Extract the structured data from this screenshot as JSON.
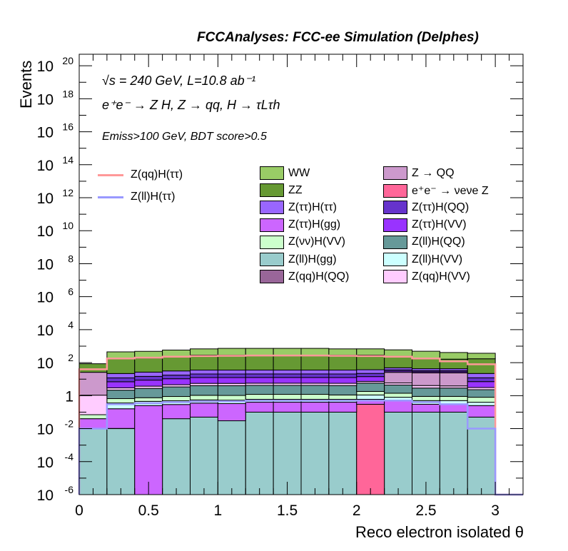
{
  "header": {
    "title": "FCCAnalyses: FCC-ee Simulation (Delphes)"
  },
  "annotations": {
    "energy": "√s = 240 GeV, L=10.8 ab⁻¹",
    "process": "e⁺e⁻ → Z H, Z → qq, H → τLτh",
    "cut": "Emiss>100 GeV, BDT score>0.5"
  },
  "chart_data": {
    "type": "bar",
    "stacked": true,
    "log_y": true,
    "xlabel": "Reco electron isolated θ",
    "ylabel": "Events",
    "xlim": [
      0,
      3.2
    ],
    "ylim": [
      1e-06,
      5e+20
    ],
    "bin_edges": [
      0,
      0.2,
      0.4,
      0.6,
      0.8,
      1.0,
      1.2,
      1.4,
      1.6,
      1.8,
      2.0,
      2.2,
      2.4,
      2.6,
      2.8,
      3.0
    ],
    "x_ticks": [
      "0",
      "0.5",
      "1",
      "1.5",
      "2",
      "2.5",
      "3"
    ],
    "y_ticks": [
      "10^-6",
      "10^-4",
      "10^-2",
      "1",
      "10^2",
      "10^4",
      "10^6",
      "10^8",
      "10^10",
      "10^12",
      "10^14",
      "10^16",
      "10^18",
      "10^20"
    ],
    "series": [
      {
        "name": "Z(ll)H(gg)",
        "color": "#99cccc",
        "values": [
          0.01,
          0.01,
          0.0,
          0.04,
          0.05,
          0.03,
          0.1,
          0.1,
          0.1,
          0.1,
          0.0,
          0.1,
          0.1,
          0.1,
          0.05
        ]
      },
      {
        "name": "Z(qq)H(QQ)",
        "color": "#996699",
        "values": [
          0.0,
          0.0003,
          0.0,
          0.0,
          0.0,
          0.0,
          0.0,
          0.0,
          0.0,
          0.0,
          0.0,
          0.0,
          0.0,
          0.0,
          0.0
        ]
      },
      {
        "name": "e⁺e⁻ → νeνe Z",
        "color": "#ff6699",
        "values": [
          0.0,
          0.0,
          0.0,
          0.0,
          0.0,
          0.0,
          0.0,
          0.0,
          0.0,
          0.0,
          0.3,
          0.0,
          0.0,
          0.0,
          0.0
        ]
      },
      {
        "name": "Z(ττ)H(gg)",
        "color": "#cc66ff",
        "values": [
          0.03,
          0.15,
          0.25,
          0.25,
          0.3,
          0.3,
          0.3,
          0.3,
          0.3,
          0.3,
          0.3,
          0.4,
          0.2,
          0.2,
          0.2
        ]
      },
      {
        "name": "Z(ll)H(VV)",
        "color": "#ccffff",
        "values": [
          0.0,
          0.2,
          0.2,
          0.2,
          0.2,
          0.2,
          0.2,
          0.2,
          0.2,
          0.2,
          0.5,
          0.3,
          0.2,
          0.2,
          0.15
        ]
      },
      {
        "name": "Z(νν)H(VV)",
        "color": "#ccffcc",
        "values": [
          0.03,
          0.3,
          0.3,
          0.4,
          0.5,
          0.5,
          0.6,
          0.6,
          0.6,
          0.5,
          0.7,
          0.6,
          0.4,
          0.4,
          0.4
        ]
      },
      {
        "name": "Z(ll)H(QQ)",
        "color": "#669999",
        "values": [
          0.0,
          1.5,
          2.0,
          2.5,
          3.0,
          3.0,
          3.0,
          3.0,
          3.0,
          3.0,
          4.0,
          3.0,
          2.0,
          2.0,
          1.5
        ]
      },
      {
        "name": "Z(qq)H(VV)",
        "color": "#ffccff",
        "values": [
          1.0,
          0.8,
          1.0,
          1.2,
          1.5,
          1.5,
          1.5,
          1.5,
          1.5,
          1.5,
          1.5,
          1.5,
          1.2,
          1.0,
          0.8
        ]
      },
      {
        "name": "Z → QQ",
        "color": "#cc99cc",
        "values": [
          25.0,
          0.0,
          0.0,
          0.0,
          0.0,
          0.0,
          0.0,
          0.0,
          0.0,
          0.0,
          0.0,
          20.0,
          20.0,
          20.0,
          0.0
        ]
      },
      {
        "name": "Z(ττ)H(VV)",
        "color": "#9933ff",
        "values": [
          0.0,
          4.0,
          5.0,
          6.0,
          7.0,
          7.0,
          7.0,
          7.0,
          7.0,
          7.0,
          7.0,
          5.0,
          4.0,
          4.0,
          4.0
        ]
      },
      {
        "name": "Z(ττ)H(QQ)",
        "color": "#6633cc",
        "values": [
          0.0,
          5.0,
          6.0,
          7.0,
          8.0,
          8.0,
          8.0,
          8.0,
          8.0,
          8.0,
          8.0,
          6.0,
          5.0,
          5.0,
          5.0
        ]
      },
      {
        "name": "Z(ττ)H(ττ)",
        "color": "#9966ff",
        "values": [
          0.0,
          10.0,
          12.0,
          14.0,
          15.0,
          15.0,
          15.0,
          15.0,
          15.0,
          15.0,
          15.0,
          12.0,
          10.0,
          10.0,
          10.0
        ]
      },
      {
        "name": "ZZ",
        "color": "#669933",
        "values": [
          60.0,
          150.0,
          160.0,
          200.0,
          250.0,
          250.0,
          250.0,
          250.0,
          250.0,
          250.0,
          250.0,
          200.0,
          150.0,
          120.0,
          150.0
        ]
      },
      {
        "name": "WW",
        "color": "#99cc66",
        "values": [
          0.0,
          280.0,
          300.0,
          350.0,
          400.0,
          450.0,
          450.0,
          450.0,
          450.0,
          400.0,
          400.0,
          350.0,
          300.0,
          250.0,
          200.0
        ]
      }
    ],
    "signal_lines": [
      {
        "name": "Z(qq)H(ττ)",
        "color": "#ff9999",
        "values": [
          40.0,
          180.0,
          200.0,
          230.0,
          250.0,
          260.0,
          270.0,
          270.0,
          270.0,
          260.0,
          250.0,
          230.0,
          180.0,
          120.0,
          80.0
        ]
      },
      {
        "name": "Z(ll)H(ττ)",
        "color": "#9999ff",
        "values": [
          0.01,
          0.3,
          0.35,
          0.4,
          0.45,
          0.45,
          0.5,
          0.5,
          0.5,
          0.5,
          0.5,
          0.5,
          0.4,
          0.3,
          0.01
        ]
      }
    ],
    "legend": {
      "lines": [
        "Z(qq)H(ττ)",
        "Z(ll)H(ττ)"
      ],
      "col1": [
        "WW",
        "ZZ",
        "Z(ττ)H(ττ)",
        "Z(ττ)H(gg)",
        "Z(νν)H(VV)",
        "Z(ll)H(gg)",
        "Z(qq)H(QQ)"
      ],
      "col2": [
        "Z → QQ",
        "e⁺e⁻ → νeνe Z",
        "Z(ττ)H(QQ)",
        "Z(ττ)H(VV)",
        "Z(ll)H(QQ)",
        "Z(ll)H(VV)",
        "Z(qq)H(VV)"
      ]
    },
    "grid": false
  }
}
